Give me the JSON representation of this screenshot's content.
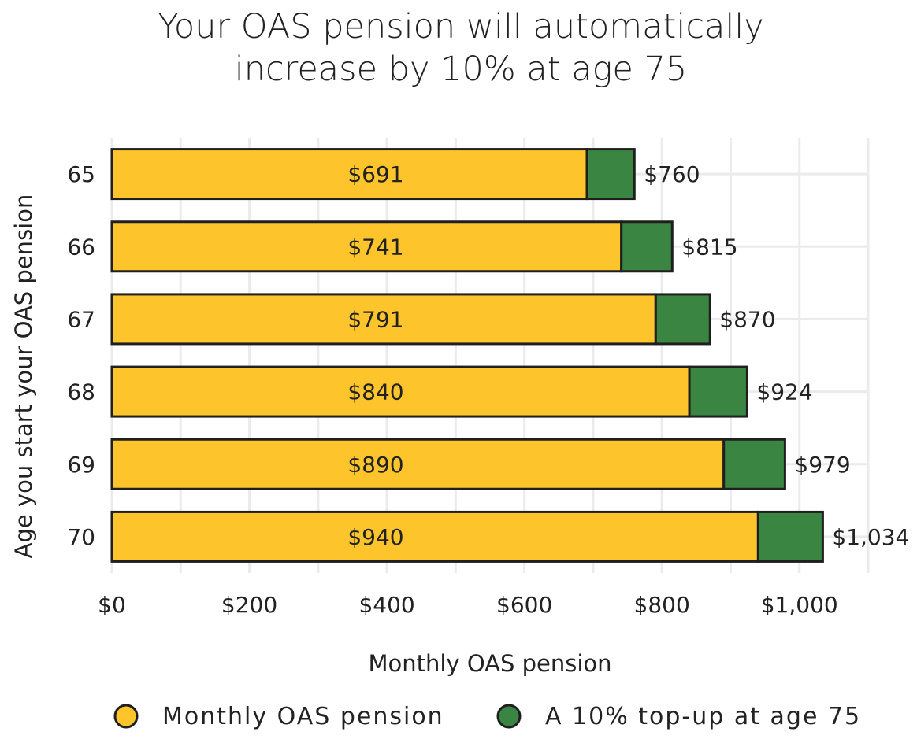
{
  "chart_data": {
    "type": "bar",
    "orientation": "horizontal",
    "stacked": true,
    "title": [
      "Your OAS pension will automatically",
      "increase by 10% at age 75"
    ],
    "xlabel": "Monthly OAS pension",
    "ylabel": "Age you start your OAS pension",
    "categories": [
      "65",
      "66",
      "67",
      "68",
      "69",
      "70"
    ],
    "series": [
      {
        "name": "Monthly OAS pension",
        "color": "#fdc42b",
        "values": [
          691,
          741,
          791,
          840,
          890,
          940
        ],
        "labels": [
          "$691",
          "$741",
          "$791",
          "$840",
          "$890",
          "$940"
        ]
      },
      {
        "name": "A 10% top-up at age 75",
        "color": "#3a8541",
        "values": [
          69,
          74,
          79,
          84,
          89,
          94
        ]
      }
    ],
    "total_labels": [
      "$760",
      "$815",
      "$870",
      "$924",
      "$979",
      "$1,034"
    ],
    "xlim": [
      0,
      1100
    ],
    "xticks": [
      0,
      200,
      400,
      600,
      800,
      1000
    ],
    "xtick_labels": [
      "$0",
      "$200",
      "$400",
      "$600",
      "$800",
      "$1,000"
    ],
    "grid": true,
    "legend_position": "bottom",
    "bar_outline_color": "#1f1f1f"
  }
}
